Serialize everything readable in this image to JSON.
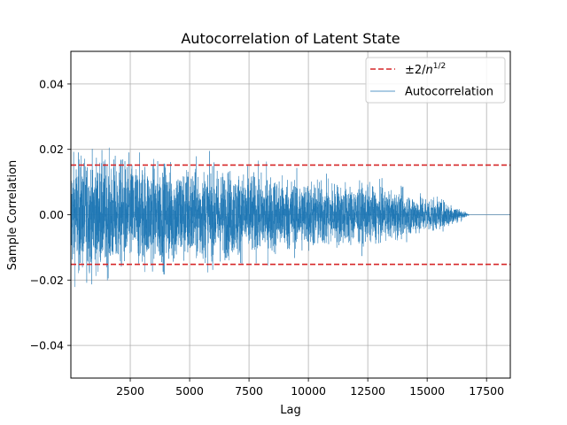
{
  "chart_data": {
    "type": "line",
    "title": "Autocorrelation of Latent State",
    "xlabel": "Lag",
    "ylabel": "Sample Correlation",
    "xlim": [
      0,
      18500
    ],
    "ylim": [
      -0.05,
      0.05
    ],
    "xticks": [
      2500,
      5000,
      7500,
      10000,
      12500,
      15000,
      17500
    ],
    "xtick_labels": [
      "2500",
      "5000",
      "7500",
      "10000",
      "12500",
      "15000",
      "17500"
    ],
    "yticks": [
      -0.04,
      -0.02,
      0.0,
      0.02,
      0.04
    ],
    "ytick_labels": [
      "−0.04",
      "−0.02",
      "0.00",
      "0.02",
      "0.04"
    ],
    "grid": true,
    "legend_position": "top-right",
    "series": [
      {
        "name": "±2/n^1/2",
        "style": "dashed",
        "color": "#d62728",
        "values": [
          0.0152,
          -0.0152
        ]
      },
      {
        "name": "Autocorrelation",
        "style": "solid",
        "color": "#1f77b4",
        "n_lags": 16800,
        "envelope": {
          "x": [
            0,
            2500,
            5000,
            7500,
            10000,
            12500,
            15000,
            16000,
            16800,
            18500
          ],
          "amplitude": [
            0.0175,
            0.016,
            0.0145,
            0.0125,
            0.0105,
            0.0085,
            0.0055,
            0.0035,
            0.0,
            0.0
          ]
        }
      }
    ]
  }
}
